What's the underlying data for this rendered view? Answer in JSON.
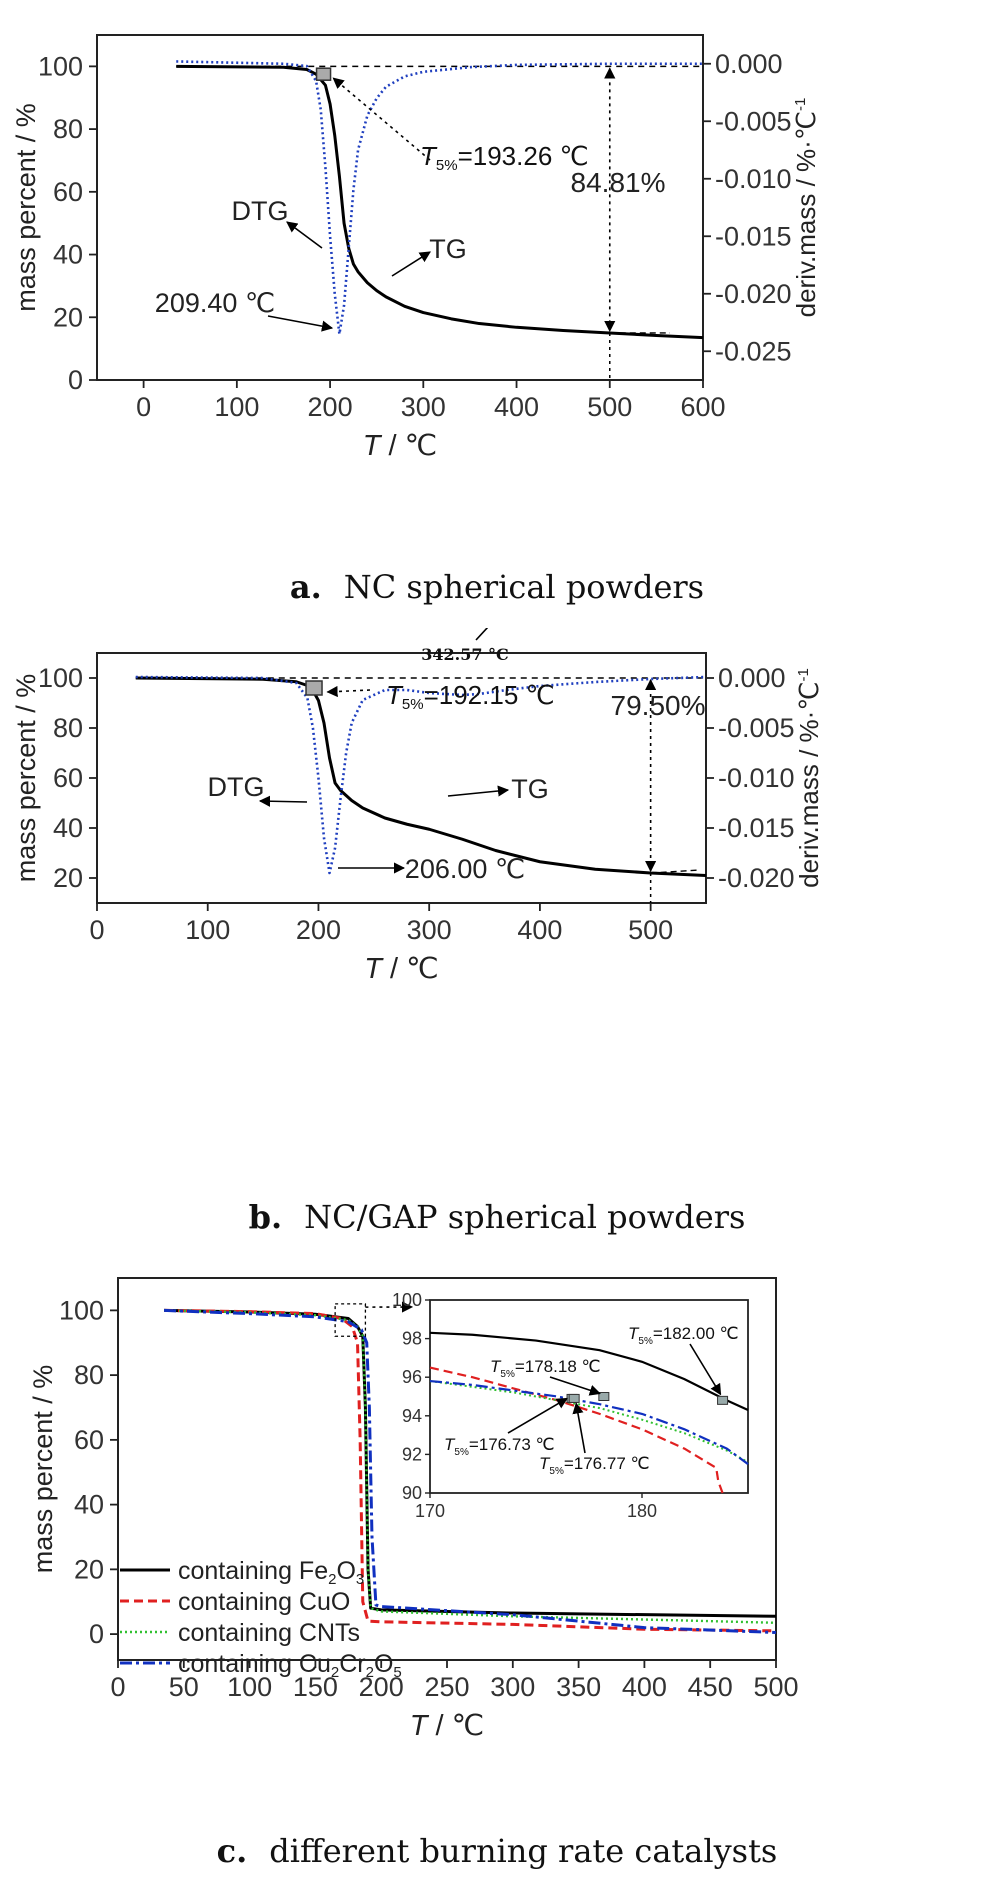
{
  "chart_data": [
    {
      "type": "line",
      "panel_label": "a.",
      "caption": "NC spherical powders",
      "xlabel": "T / ℃",
      "ylabel": "mass percent / %",
      "y2label": "deriv.mass / %·℃⁻¹",
      "xlim": [
        -50,
        600
      ],
      "ylim": [
        0,
        110
      ],
      "y2lim": [
        -0.0275,
        0.0025
      ],
      "xticks": [
        "0",
        "100",
        "200",
        "300",
        "400",
        "500",
        "600"
      ],
      "yticks": [
        "0",
        "20",
        "40",
        "60",
        "80",
        "100"
      ],
      "y2ticks": [
        "0.000",
        "-0.005",
        "-0.010",
        "-0.015",
        "-0.020",
        "-0.025"
      ],
      "series": [
        {
          "name": "TG",
          "axis": "left",
          "style": "solid",
          "color": "#000000",
          "x": [
            35,
            150,
            175,
            185,
            195,
            200,
            205,
            210,
            215,
            220,
            225,
            230,
            240,
            250,
            260,
            280,
            300,
            330,
            360,
            400,
            450,
            500,
            550,
            600
          ],
          "y": [
            100,
            99.7,
            99,
            97.5,
            94,
            88,
            78,
            65,
            50,
            42,
            37,
            34.5,
            31,
            28.5,
            26.5,
            23.5,
            21.5,
            19.5,
            18,
            16.8,
            15.8,
            15,
            14.2,
            13.5
          ]
        },
        {
          "name": "DTG",
          "axis": "right",
          "style": "dotted",
          "color": "#1f3fbf",
          "x": [
            35,
            150,
            175,
            185,
            190,
            195,
            200,
            205,
            210,
            215,
            220,
            225,
            230,
            240,
            250,
            260,
            280,
            300,
            350,
            400,
            500,
            600
          ],
          "y": [
            0.0002,
            0,
            -0.0002,
            -0.0015,
            -0.004,
            -0.009,
            -0.015,
            -0.02,
            -0.0235,
            -0.021,
            -0.016,
            -0.011,
            -0.0075,
            -0.0045,
            -0.003,
            -0.002,
            -0.0011,
            -0.0007,
            -0.0003,
            -0.0001,
            0,
            0
          ]
        }
      ],
      "annotations": {
        "t5": "=193.26 ℃",
        "peak": "209.40 ℃",
        "loss": "84.81%",
        "dtg_label": "DTG",
        "tg_label": "TG"
      }
    },
    {
      "type": "line",
      "panel_label": "b.",
      "caption": "NC/GAP spherical powders",
      "xlabel": "T / ℃",
      "ylabel": "mass percent / %",
      "y2label": "deriv.mass / %·℃⁻¹",
      "xlim": [
        0,
        550
      ],
      "ylim": [
        10,
        110
      ],
      "y2lim": [
        -0.0225,
        0.0025
      ],
      "xticks": [
        "0",
        "100",
        "200",
        "300",
        "400",
        "500"
      ],
      "yticks": [
        "20",
        "40",
        "60",
        "80",
        "100"
      ],
      "y2ticks": [
        "0.000",
        "-0.005",
        "-0.010",
        "-0.015",
        "-0.020"
      ],
      "series": [
        {
          "name": "TG",
          "axis": "left",
          "style": "solid",
          "color": "#000000",
          "x": [
            35,
            150,
            180,
            190,
            195,
            200,
            205,
            210,
            215,
            220,
            230,
            240,
            260,
            280,
            300,
            330,
            360,
            400,
            450,
            500,
            550
          ],
          "y": [
            100,
            99.5,
            98.5,
            97,
            95,
            91,
            82,
            68,
            58,
            55,
            51,
            48,
            44,
            41.5,
            39.5,
            35.5,
            31,
            26.5,
            23.5,
            22,
            21
          ]
        },
        {
          "name": "DTG",
          "axis": "right",
          "style": "dotted",
          "color": "#1f3fbf",
          "x": [
            35,
            150,
            180,
            190,
            195,
            200,
            205,
            210,
            215,
            220,
            225,
            230,
            240,
            260,
            280,
            300,
            330,
            345,
            370,
            400,
            450,
            500,
            550
          ],
          "y": [
            0.0001,
            0,
            -0.0005,
            -0.002,
            -0.005,
            -0.01,
            -0.016,
            -0.0195,
            -0.017,
            -0.012,
            -0.0075,
            -0.0045,
            -0.0022,
            -0.0012,
            -0.0012,
            -0.0015,
            -0.0017,
            -0.0016,
            -0.0012,
            -0.0008,
            -0.0004,
            -0.0001,
            0.0001
          ]
        }
      ],
      "annotations": {
        "t5": "=192.15 ℃",
        "peak": "206.00 ℃",
        "second_peak": "342.57 °C",
        "loss": "79.50%",
        "dtg_label": "DTG",
        "tg_label": "TG"
      }
    },
    {
      "type": "line",
      "panel_label": "c.",
      "caption": "different burning rate catalysts",
      "xlabel": "T / ℃",
      "ylabel": "mass percent / %",
      "xlim": [
        0,
        500
      ],
      "ylim": [
        -8,
        110
      ],
      "xticks": [
        "0",
        "50",
        "100",
        "150",
        "200",
        "250",
        "300",
        "350",
        "400",
        "450",
        "500"
      ],
      "yticks": [
        "0",
        "20",
        "40",
        "60",
        "80",
        "100"
      ],
      "legend_position": "bottom-left",
      "series": [
        {
          "name": "containing Fe2O3",
          "label_main": "containing Fe",
          "sub1": "2",
          "mid": "O",
          "sub2": "3",
          "tail": "",
          "style": "solid",
          "color": "#000000",
          "x": [
            35,
            100,
            150,
            175,
            182,
            186,
            188,
            190,
            192,
            200,
            300,
            400,
            500
          ],
          "y": [
            100,
            99.5,
            98.8,
            97.5,
            95,
            92,
            70,
            20,
            8,
            7.5,
            6.5,
            6,
            5.5
          ]
        },
        {
          "name": "containing CuO",
          "label_main": "containing CuO",
          "sub1": "",
          "mid": "",
          "sub2": "",
          "tail": "",
          "style": "dashed",
          "color": "#e02020",
          "x": [
            35,
            100,
            150,
            170,
            178,
            182,
            184,
            186,
            190,
            200,
            300,
            400,
            500
          ],
          "y": [
            100,
            99.6,
            99,
            97.5,
            95,
            90,
            60,
            10,
            4,
            3.8,
            3,
            1.5,
            1
          ]
        },
        {
          "name": "containing CNTs",
          "label_main": "containing CNTs",
          "sub1": "",
          "mid": "",
          "sub2": "",
          "tail": "",
          "style": "dotted",
          "color": "#30c030",
          "x": [
            35,
            100,
            150,
            175,
            182,
            186,
            188,
            190,
            192,
            200,
            300,
            400,
            500
          ],
          "y": [
            100,
            99.4,
            98.5,
            97,
            95,
            92,
            70,
            20,
            8,
            7,
            5.5,
            4.5,
            3.5
          ]
        },
        {
          "name": "containing Cu2Cr2O5",
          "label_main": "containing Cu",
          "sub1": "2",
          "mid": "Cr",
          "sub2": "2",
          "tail": "O",
          "sub3": "5",
          "style": "dashdot",
          "color": "#1030c0",
          "x": [
            35,
            100,
            150,
            175,
            185,
            189,
            191,
            193,
            196,
            200,
            300,
            400,
            500
          ],
          "y": [
            100,
            99,
            98,
            96.5,
            94,
            90,
            70,
            30,
            9,
            8.5,
            6,
            2,
            0.5
          ]
        }
      ],
      "inset": {
        "xlim": [
          170,
          185
        ],
        "ylim": [
          90,
          100
        ],
        "xticks": [
          "170",
          "180"
        ],
        "yticks": [
          "90",
          "92",
          "94",
          "96",
          "98",
          "100"
        ],
        "series": [
          {
            "name": "containing Fe2O3",
            "x": [
              170,
              172,
              175,
              178,
              180,
              182,
              184,
              185
            ],
            "y": [
              98.3,
              98.2,
              97.9,
              97.4,
              96.8,
              95.9,
              94.8,
              94.3
            ]
          },
          {
            "name": "containing CuO",
            "x": [
              170,
              172,
              174,
              176,
              178,
              180,
              182,
              183.5,
              183.6,
              183.8
            ],
            "y": [
              96.5,
              96.0,
              95.4,
              94.8,
              94.1,
              93.3,
              92.3,
              91.3,
              90.6,
              90
            ]
          },
          {
            "name": "containing CNTs",
            "x": [
              170,
              172,
              174,
              176,
              178,
              180,
              182,
              184,
              185
            ],
            "y": [
              95.8,
              95.5,
              95.2,
              94.8,
              94.4,
              93.8,
              93.1,
              92.2,
              91.6
            ]
          },
          {
            "name": "containing Cu2Cr2O5",
            "x": [
              170,
              172,
              174,
              176,
              178,
              180,
              182,
              184,
              185
            ],
            "y": [
              95.8,
              95.6,
              95.3,
              95.0,
              94.6,
              94.1,
              93.3,
              92.3,
              91.5
            ]
          }
        ],
        "annotations": [
          {
            "text": "=182.00 ℃"
          },
          {
            "text": "=178.18 ℃"
          },
          {
            "text": "=176.73 ℃"
          },
          {
            "text": "=176.77 ℃"
          }
        ]
      }
    }
  ],
  "t5_symbol": "T",
  "t5_sub": "5%",
  "x_axis_t": "T",
  "x_axis_unit": " / ℃",
  "y2_main": "deriv.mass / %·℃",
  "y2_sup": "-1"
}
